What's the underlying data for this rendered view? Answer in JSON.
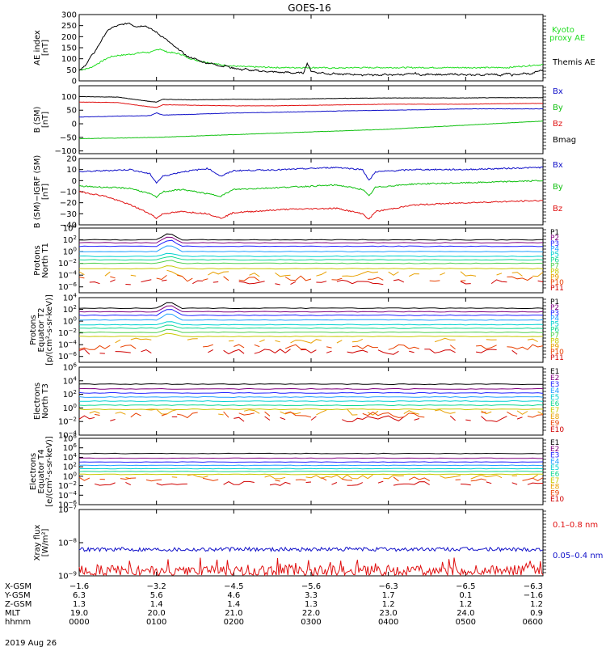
{
  "title": "GOES-16",
  "date": "2019 Aug 26",
  "colors": {
    "black": "#000000",
    "blue": "#1010c8",
    "green": "#10c010",
    "red": "#e01010",
    "lgreen": "#22dd22",
    "p_ramp": [
      "#000000",
      "#800080",
      "#2020ff",
      "#1f9fff",
      "#00d0d0",
      "#10d890",
      "#50d050",
      "#c8c800",
      "#e8a000",
      "#e84000",
      "#d00000"
    ],
    "e_ramp": [
      "#000000",
      "#800080",
      "#2020ff",
      "#1f9fff",
      "#00d0d0",
      "#10d890",
      "#c8c800",
      "#e8a000",
      "#e84000",
      "#d00000"
    ]
  },
  "chart_data": [
    {
      "id": "ae",
      "type": "line",
      "ylabel": [
        "AE index",
        "[nT]"
      ],
      "ylim": [
        0,
        300
      ],
      "yticks": [
        "0",
        "50",
        "100",
        "150",
        "200",
        "250",
        "300"
      ],
      "series": [
        {
          "name": "Kyoto proxy AE",
          "color": "#22dd22",
          "x": [
            0,
            3,
            6,
            9,
            12,
            15,
            18,
            21,
            25,
            30,
            33,
            36,
            39,
            42,
            45,
            48,
            51,
            54,
            57,
            60,
            63,
            66,
            69,
            72,
            75,
            78,
            81,
            84,
            87,
            90,
            93,
            96,
            99,
            102,
            105,
            108,
            111,
            114,
            117,
            120,
            123,
            126,
            129,
            132,
            135,
            138,
            141,
            144,
            147,
            150,
            153,
            156,
            159,
            162,
            165,
            168,
            171,
            174,
            177,
            180,
            183,
            186,
            189,
            192,
            195,
            198,
            201,
            204,
            207,
            210,
            213,
            216,
            219,
            222,
            225,
            228,
            231,
            234,
            237,
            240,
            243,
            246,
            249,
            252,
            255,
            258,
            261,
            264,
            267,
            270,
            273,
            276,
            279,
            282,
            285,
            288,
            291,
            294,
            297,
            300,
            303,
            306,
            309,
            312,
            315,
            318,
            321,
            324,
            327,
            330,
            333,
            336,
            339,
            342,
            345,
            348,
            351,
            354,
            357,
            360
          ],
          "y": [
            50,
            52,
            55,
            60,
            70,
            80,
            90,
            100,
            110,
            115,
            116,
            118,
            120,
            122,
            125,
            128,
            130,
            128,
            132,
            140,
            145,
            135,
            130,
            128,
            125,
            122,
            115,
            105,
            100,
            95,
            90,
            88,
            85,
            80,
            78,
            75,
            72,
            70,
            68,
            67,
            66,
            65,
            64,
            64,
            63,
            63,
            62,
            62,
            61,
            61,
            60,
            60,
            60,
            60,
            60,
            60,
            60,
            60,
            60,
            60,
            60,
            60,
            60,
            58,
            58,
            58,
            58,
            58,
            58,
            60,
            60,
            60,
            60,
            60,
            60,
            60,
            60,
            60,
            60,
            60,
            60,
            60,
            60,
            60,
            60,
            60,
            60,
            60,
            60,
            60,
            60,
            60,
            60,
            60,
            60,
            60,
            60,
            60,
            60,
            60,
            60,
            60,
            60,
            60,
            60,
            60,
            60,
            60,
            60,
            60,
            60,
            62,
            64,
            66,
            66,
            68,
            70,
            72,
            72,
            74
          ]
        },
        {
          "name": "Themis AE",
          "color": "#000000",
          "x": [
            0,
            3,
            6,
            9,
            12,
            15,
            18,
            21,
            25,
            30,
            33,
            36,
            39,
            42,
            45,
            48,
            51,
            54,
            57,
            60,
            63,
            66,
            69,
            72,
            75,
            78,
            81,
            84,
            87,
            90,
            93,
            96,
            99,
            102,
            105,
            108,
            111,
            114,
            117,
            120,
            123,
            126,
            129,
            132,
            135,
            138,
            141,
            144,
            147,
            150,
            153,
            156,
            159,
            162,
            165,
            168,
            171,
            174,
            177,
            180,
            183,
            186,
            189,
            192,
            195,
            198,
            201,
            204,
            207,
            210,
            213,
            216,
            219,
            222,
            225,
            228,
            231,
            234,
            237,
            240,
            243,
            246,
            249,
            252,
            255,
            258,
            261,
            264,
            267,
            270,
            273,
            276,
            279,
            282,
            285,
            288,
            291,
            294,
            297,
            300,
            303,
            306,
            309,
            312,
            315,
            318,
            321,
            324,
            327,
            330,
            333,
            336,
            339,
            342,
            345,
            348,
            351,
            354,
            357,
            360
          ],
          "y": [
            45,
            60,
            80,
            110,
            130,
            160,
            190,
            220,
            240,
            250,
            255,
            258,
            262,
            250,
            245,
            248,
            250,
            240,
            230,
            220,
            205,
            195,
            180,
            165,
            150,
            140,
            125,
            110,
            105,
            100,
            92,
            85,
            80,
            80,
            75,
            70,
            65,
            70,
            60,
            58,
            55,
            50,
            55,
            48,
            45,
            50,
            42,
            45,
            40,
            42,
            40,
            38,
            38,
            40,
            35,
            35,
            38,
            35,
            80,
            45,
            40,
            35,
            38,
            32,
            30,
            35,
            30,
            28,
            32,
            30,
            28,
            30,
            25,
            28,
            30,
            25,
            28,
            25,
            30,
            28,
            25,
            30,
            28,
            28,
            32,
            30,
            35,
            28,
            25,
            30,
            32,
            28,
            30,
            25,
            28,
            30,
            32,
            28,
            30,
            25,
            28,
            25,
            30,
            25,
            28,
            30,
            32,
            28,
            25,
            30,
            35,
            25,
            30,
            28,
            35,
            32,
            30,
            40,
            45,
            50
          ]
        }
      ]
    },
    {
      "id": "bsm",
      "type": "line",
      "ylabel": [
        "B (SM)",
        "[nT]"
      ],
      "ylim": [
        -110,
        140
      ],
      "yticks": [
        "-100",
        "-50",
        "0",
        "50",
        "100"
      ],
      "series": [
        {
          "name": "Bx",
          "color": "#1010c8",
          "x": [
            0,
            30,
            55,
            60,
            65,
            90,
            120,
            150,
            180,
            210,
            240,
            270,
            300,
            330,
            360
          ],
          "y": [
            25,
            28,
            30,
            40,
            32,
            35,
            40,
            42,
            45,
            48,
            50,
            52,
            55,
            55,
            55
          ]
        },
        {
          "name": "By",
          "color": "#10c010",
          "x": [
            0,
            60,
            120,
            180,
            240,
            300,
            360
          ],
          "y": [
            -55,
            -50,
            -40,
            -30,
            -20,
            -5,
            10
          ]
        },
        {
          "name": "Bz",
          "color": "#e01010",
          "x": [
            0,
            30,
            55,
            60,
            65,
            90,
            120,
            150,
            180,
            210,
            240,
            270,
            300,
            330,
            360
          ],
          "y": [
            80,
            78,
            62,
            60,
            70,
            68,
            66,
            66,
            68,
            70,
            72,
            72,
            72,
            74,
            75
          ]
        },
        {
          "name": "Bmag",
          "color": "#000000",
          "x": [
            0,
            30,
            55,
            60,
            65,
            90,
            120,
            150,
            180,
            210,
            240,
            270,
            300,
            330,
            360
          ],
          "y": [
            100,
            98,
            82,
            80,
            90,
            88,
            90,
            90,
            92,
            94,
            95,
            95,
            95,
            96,
            96
          ]
        }
      ]
    },
    {
      "id": "bdiff",
      "type": "line",
      "ylabel": [
        "B (SM)−IGRF (SM)",
        "[nT]"
      ],
      "ylim": [
        -40,
        20
      ],
      "yticks": [
        "-40",
        "-30",
        "-20",
        "-10",
        "0",
        "10",
        "20"
      ],
      "series": [
        {
          "name": "Bx",
          "color": "#1010c8",
          "x": [
            0,
            20,
            40,
            55,
            60,
            65,
            80,
            100,
            110,
            120,
            160,
            200,
            220,
            225,
            230,
            260,
            300,
            360
          ],
          "y": [
            8,
            9,
            10,
            6,
            -2,
            4,
            8,
            11,
            4,
            9,
            10,
            12,
            10,
            0,
            8,
            10,
            10,
            12
          ]
        },
        {
          "name": "By",
          "color": "#10c010",
          "x": [
            0,
            20,
            40,
            55,
            60,
            65,
            80,
            110,
            120,
            160,
            200,
            220,
            225,
            230,
            260,
            300,
            360
          ],
          "y": [
            -5,
            -6,
            -7,
            -12,
            -15,
            -10,
            -8,
            -14,
            -8,
            -6,
            -4,
            -8,
            -14,
            -6,
            -3,
            -2,
            0
          ]
        },
        {
          "name": "Bz",
          "color": "#e01010",
          "x": [
            0,
            20,
            40,
            55,
            60,
            65,
            80,
            100,
            110,
            120,
            160,
            200,
            220,
            225,
            230,
            260,
            300,
            360
          ],
          "y": [
            -10,
            -14,
            -22,
            -30,
            -34,
            -30,
            -28,
            -30,
            -34,
            -29,
            -26,
            -25,
            -30,
            -35,
            -28,
            -22,
            -20,
            -18
          ]
        }
      ]
    },
    {
      "id": "pnt1",
      "type": "line",
      "log": true,
      "ylabel": [
        "Protons",
        "North T1"
      ],
      "ylim_exp": [
        -7,
        4
      ],
      "yticks": [
        "10^4",
        "10^2",
        "10^0",
        "10^-2",
        "10^-4",
        "10^-6"
      ],
      "series_names": [
        "P1",
        "P2",
        "P3",
        "P4",
        "P5",
        "P6",
        "P7",
        "P8",
        "P9",
        "P10",
        "P11"
      ],
      "levels": [
        2.0,
        1.5,
        0.9,
        0.0,
        -0.8,
        -1.4,
        -2.0,
        -2.9,
        -3.8,
        -4.6,
        -5.2
      ],
      "spike": 1.2
    },
    {
      "id": "pet2",
      "type": "line",
      "log": true,
      "ylabel": [
        "Protons",
        "Equator T2",
        "[p/(cm²-s-sr-keV)]"
      ],
      "ylim_exp": [
        -7,
        4
      ],
      "yticks": [
        "10^4",
        "10^2",
        "10^0",
        "10^-2",
        "10^-4",
        "10^-6"
      ],
      "series_names": [
        "P1",
        "P2",
        "P3",
        "P4",
        "P5",
        "P6",
        "P7",
        "P8",
        "P9",
        "P10",
        "P11"
      ],
      "levels": [
        2.2,
        1.6,
        1.0,
        0.2,
        -0.6,
        -1.2,
        -1.9,
        -2.6,
        -3.3,
        -4.4,
        -5.2
      ],
      "spike": 1.2
    },
    {
      "id": "ent3",
      "type": "line",
      "log": true,
      "ylabel": [
        "Electrons",
        "North T3"
      ],
      "ylim_exp": [
        -4,
        6
      ],
      "yticks": [
        "10^6",
        "10^4",
        "10^2",
        "10^0",
        "10^-2",
        "10^-4"
      ],
      "series_names": [
        "E1",
        "E2",
        "E3",
        "E4",
        "E5",
        "E6",
        "E7",
        "E8",
        "E9",
        "E10"
      ],
      "levels": [
        3.5,
        2.8,
        2.2,
        1.6,
        1.0,
        0.4,
        -0.2,
        -0.6,
        -1.0,
        -1.6
      ],
      "spike": 0
    },
    {
      "id": "eet4",
      "type": "line",
      "log": true,
      "ylabel": [
        "Electrons",
        "Equator T4",
        "[e/(cm²-s-sr-keV)]"
      ],
      "ylim_exp": [
        -6,
        8
      ],
      "yticks": [
        "10^8",
        "10^6",
        "10^4",
        "10^2",
        "10^0",
        "10^-2",
        "10^-4",
        "10^-6"
      ],
      "series_names": [
        "E1",
        "E2",
        "E3",
        "E4",
        "E5",
        "E6",
        "E7",
        "E8",
        "E9",
        "E10"
      ],
      "levels": [
        4.8,
        3.8,
        3.0,
        2.3,
        1.6,
        1.0,
        0.4,
        -0.1,
        -0.6,
        -1.5
      ],
      "spike": 0
    },
    {
      "id": "xray",
      "type": "line",
      "log": true,
      "ylabel": [
        "Xray flux",
        "[W/m²]"
      ],
      "ylim_exp": [
        -9,
        -7
      ],
      "yticks": [
        "10^-7",
        "10^-8",
        "10^-9"
      ],
      "series": [
        {
          "name": "0.1–0.8 nm",
          "color": "#e01010",
          "level": -8.85,
          "noise": 0.17
        },
        {
          "name": "0.05–0.4 nm",
          "color": "#1010c8",
          "level": -8.2,
          "noise": 0.06
        }
      ]
    }
  ],
  "legends": {
    "ae": [
      {
        "text": "Kyoto",
        "color": "#22dd22"
      },
      {
        "text": "proxy AE",
        "color": "#22dd22"
      },
      {
        "text": "Themis AE",
        "color": "#000000"
      }
    ],
    "bsm": [
      "Bx",
      "By",
      "Bz",
      "Bmag"
    ],
    "bdiff": [
      "Bx",
      "By",
      "Bz"
    ],
    "xray": [
      {
        "text": "0.1–0.8 nm",
        "color": "#e01010"
      },
      {
        "text": "0.05–0.4 nm",
        "color": "#1010c8"
      }
    ]
  },
  "ephemeris": {
    "labels": [
      "X-GSM",
      "Y-GSM",
      "Z-GSM",
      "MLT",
      "hhmm"
    ],
    "columns": [
      {
        "X-GSM": "−1.6",
        "Y-GSM": "6.3",
        "Z-GSM": "1.3",
        "MLT": "19.0",
        "hhmm": "0000"
      },
      {
        "X-GSM": "−3.2",
        "Y-GSM": "5.6",
        "Z-GSM": "1.4",
        "MLT": "20.0",
        "hhmm": "0100"
      },
      {
        "X-GSM": "−4.5",
        "Y-GSM": "4.6",
        "Z-GSM": "1.4",
        "MLT": "21.0",
        "hhmm": "0200"
      },
      {
        "X-GSM": "−5.6",
        "Y-GSM": "3.3",
        "Z-GSM": "1.3",
        "MLT": "22.0",
        "hhmm": "0300"
      },
      {
        "X-GSM": "−6.3",
        "Y-GSM": "1.7",
        "Z-GSM": "1.2",
        "MLT": "23.0",
        "hhmm": "0400"
      },
      {
        "X-GSM": "−6.5",
        "Y-GSM": "0.1",
        "Z-GSM": "1.2",
        "MLT": "24.0",
        "hhmm": "0500"
      },
      {
        "X-GSM": "−6.3",
        "Y-GSM": "−1.6",
        "Z-GSM": "1.2",
        "MLT": "0.9",
        "hhmm": "0600"
      }
    ]
  }
}
